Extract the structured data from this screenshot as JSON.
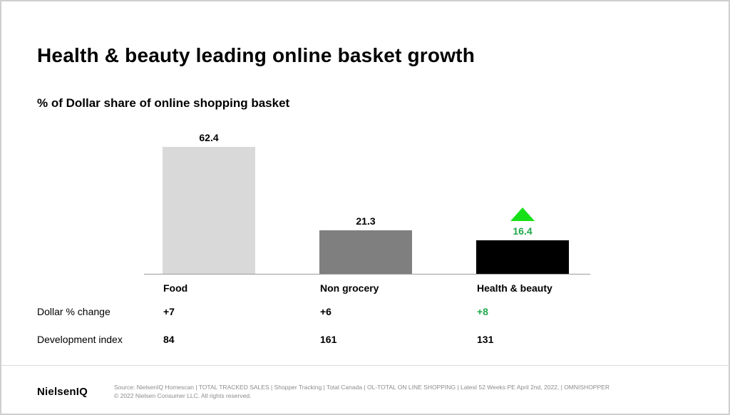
{
  "title": "Health & beauty leading online basket growth",
  "subtitle": "% of Dollar share of online shopping basket",
  "chart_data": {
    "type": "bar",
    "categories": [
      "Food",
      "Non grocery",
      "Health & beauty"
    ],
    "values": [
      62.4,
      21.3,
      16.4
    ],
    "value_labels": [
      "62.4",
      "21.3",
      "16.4"
    ],
    "colors": [
      "#d9d9d9",
      "#7f7f7f",
      "#000000"
    ],
    "highlight_color": "#1faa4a",
    "ylim": [
      0,
      62.4
    ],
    "grid": false,
    "title": "% of Dollar share of online shopping basket",
    "xlabel": "",
    "ylabel": ""
  },
  "rows": [
    {
      "label": "Dollar % change",
      "values": [
        "+7",
        "+6",
        "+8"
      ]
    },
    {
      "label": "Development index",
      "values": [
        "84",
        "161",
        "131"
      ]
    }
  ],
  "footer": {
    "logo": "NielsenIQ",
    "source_line1": "Source: NielsenIQ Homescan | TOTAL TRACKED SALES | Shopper Tracking | Total Canada | OL-TOTAL ON LINE SHOPPING | Latest 52 Weeks PE April 2nd, 2022, | OMNISHOPPER",
    "source_line2": "© 2022 Nielsen Consumer LLC. All rights reserved."
  },
  "icons": {
    "growth_indicator": "up-triangle-icon"
  }
}
